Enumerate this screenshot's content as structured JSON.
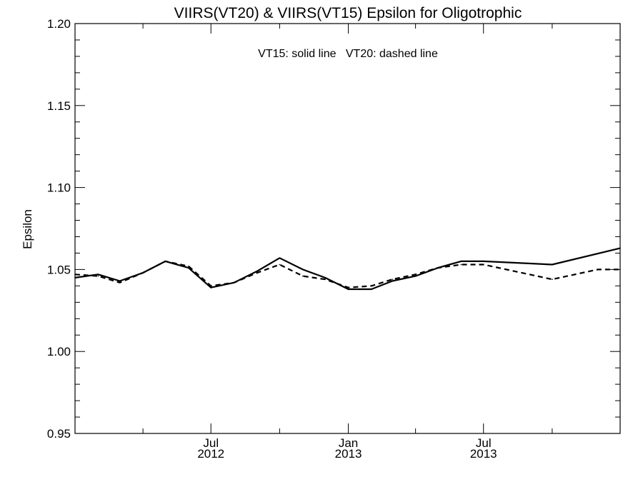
{
  "chart_data": {
    "type": "line",
    "title": "VIIRS(VT20) & VIIRS(VT15)  Epsilon for Oligotrophic",
    "xlabel": "",
    "ylabel": "Epsilon",
    "annotation": "VT15: solid line   VT20: dashed line",
    "ylim": [
      0.95,
      1.2
    ],
    "xlim": [
      "2012-01-01",
      "2013-12-31"
    ],
    "yticks": [
      {
        "value": 0.95,
        "label": "0.95"
      },
      {
        "value": 1.0,
        "label": "1.00"
      },
      {
        "value": 1.05,
        "label": "1.05"
      },
      {
        "value": 1.1,
        "label": "1.10"
      },
      {
        "value": 1.15,
        "label": "1.15"
      },
      {
        "value": 1.2,
        "label": "1.20"
      }
    ],
    "xticks": [
      {
        "date": "2012-07-01",
        "month": "Jul",
        "year": "2012"
      },
      {
        "date": "2013-01-01",
        "month": "Jan",
        "year": "2013"
      },
      {
        "date": "2013-07-01",
        "month": "Jul",
        "year": "2013"
      }
    ],
    "x_minor_ticks": [
      "2012-04-01",
      "2012-10-01",
      "2013-04-01",
      "2013-10-01"
    ],
    "grid": false,
    "series": [
      {
        "style": "solid",
        "points": [
          [
            "2012-01-01",
            1.045
          ],
          [
            "2012-02-01",
            1.047
          ],
          [
            "2012-03-01",
            1.043
          ],
          [
            "2012-04-01",
            1.048
          ],
          [
            "2012-05-01",
            1.055
          ],
          [
            "2012-06-01",
            1.051
          ],
          [
            "2012-07-01",
            1.039
          ],
          [
            "2012-08-01",
            1.042
          ],
          [
            "2012-09-01",
            1.049
          ],
          [
            "2012-10-01",
            1.057
          ],
          [
            "2012-11-01",
            1.05
          ],
          [
            "2012-12-01",
            1.045
          ],
          [
            "2013-01-01",
            1.038
          ],
          [
            "2013-02-01",
            1.038
          ],
          [
            "2013-03-01",
            1.043
          ],
          [
            "2013-04-01",
            1.046
          ],
          [
            "2013-05-01",
            1.051
          ],
          [
            "2013-06-01",
            1.055
          ],
          [
            "2013-07-01",
            1.055
          ],
          [
            "2013-10-01",
            1.053
          ],
          [
            "2013-12-31",
            1.063
          ]
        ]
      },
      {
        "style": "dashed",
        "points": [
          [
            "2012-01-01",
            1.047
          ],
          [
            "2012-02-01",
            1.046
          ],
          [
            "2012-03-01",
            1.042
          ],
          [
            "2012-04-01",
            1.048
          ],
          [
            "2012-05-01",
            1.055
          ],
          [
            "2012-06-01",
            1.052
          ],
          [
            "2012-07-01",
            1.04
          ],
          [
            "2012-08-01",
            1.042
          ],
          [
            "2012-09-01",
            1.048
          ],
          [
            "2012-10-01",
            1.053
          ],
          [
            "2012-11-01",
            1.046
          ],
          [
            "2012-12-01",
            1.044
          ],
          [
            "2013-01-01",
            1.039
          ],
          [
            "2013-02-01",
            1.04
          ],
          [
            "2013-03-01",
            1.044
          ],
          [
            "2013-04-01",
            1.047
          ],
          [
            "2013-05-01",
            1.051
          ],
          [
            "2013-06-01",
            1.053
          ],
          [
            "2013-07-01",
            1.053
          ],
          [
            "2013-10-01",
            1.044
          ],
          [
            "2013-12-01",
            1.05
          ],
          [
            "2013-12-31",
            1.05
          ]
        ]
      }
    ]
  }
}
